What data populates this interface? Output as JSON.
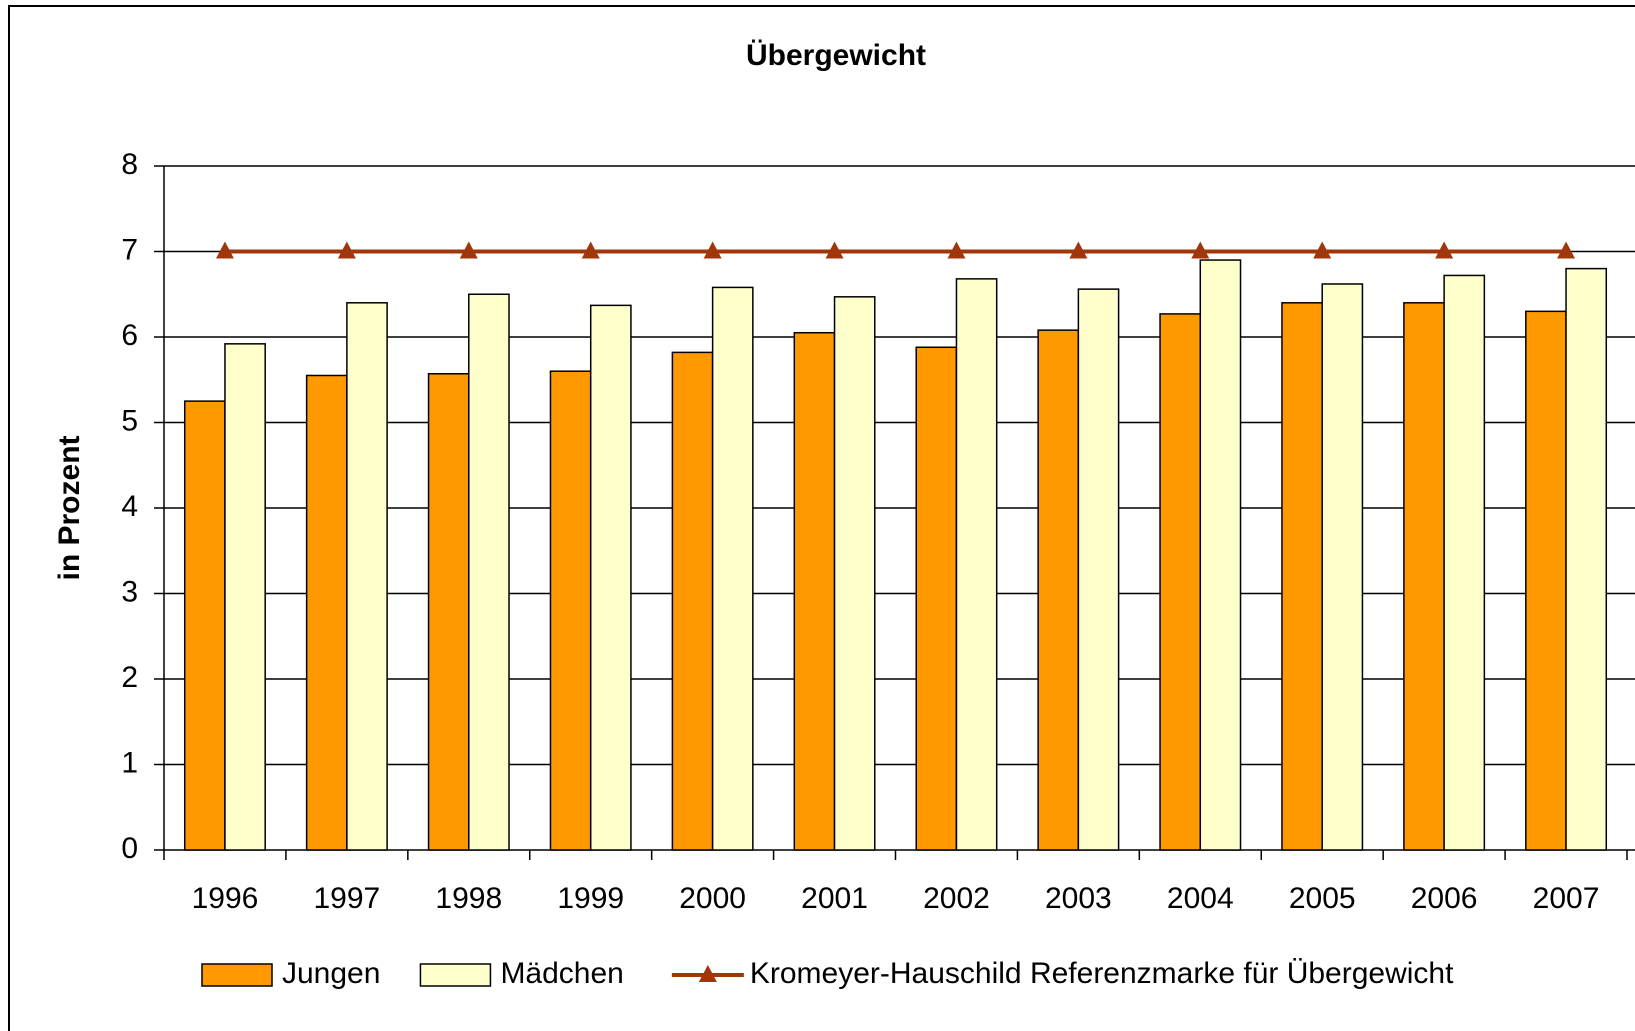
{
  "chart_data": {
    "type": "bar",
    "title": "Übergewicht",
    "y_label": "in Prozent",
    "categories": [
      "1996",
      "1997",
      "1998",
      "1999",
      "2000",
      "2001",
      "2002",
      "2003",
      "2004",
      "2005",
      "2006",
      "2007"
    ],
    "series": [
      {
        "name": "Jungen",
        "type": "bar",
        "color": "#ff9900",
        "values": [
          5.25,
          5.55,
          5.57,
          5.6,
          5.82,
          6.05,
          5.88,
          6.08,
          6.27,
          6.4,
          6.4,
          6.3
        ]
      },
      {
        "name": "Mädchen",
        "type": "bar",
        "color": "#ffffcc",
        "values": [
          5.92,
          6.4,
          6.5,
          6.37,
          6.58,
          6.47,
          6.68,
          6.56,
          6.9,
          6.62,
          6.72,
          6.8
        ]
      },
      {
        "name": "Kromeyer-Hauschild Referenzmarke für Übergewicht",
        "type": "line",
        "color": "#a0360b",
        "values": [
          7,
          7,
          7,
          7,
          7,
          7,
          7,
          7,
          7,
          7,
          7,
          7
        ]
      }
    ],
    "ylim": [
      0,
      8
    ],
    "yticks": [
      0,
      1,
      2,
      3,
      4,
      5,
      6,
      7,
      8
    ],
    "grid": true,
    "legend": "bottom"
  }
}
